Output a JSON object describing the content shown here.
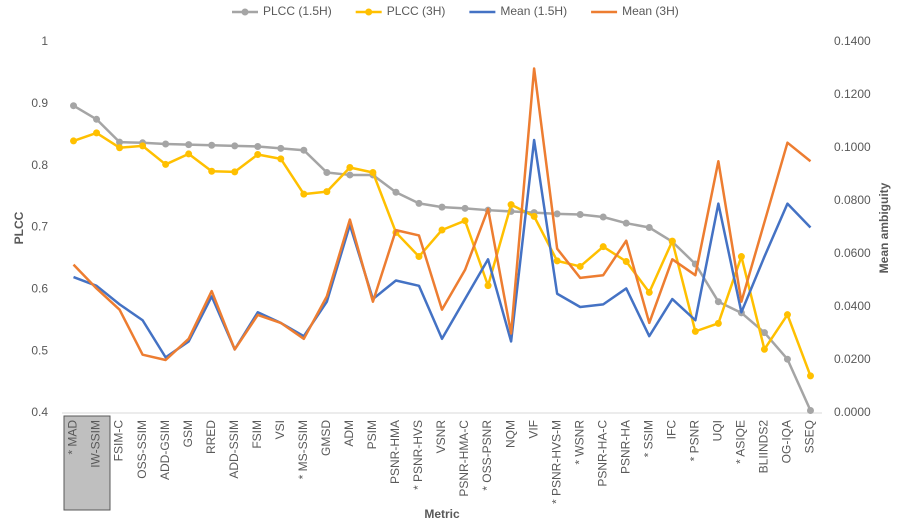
{
  "chart_data": {
    "type": "line",
    "xlabel": "Metric",
    "ylabel": "PLCC",
    "y2label": "Mean ambiguity",
    "categories": [
      "* MAD",
      "IW-SSIM",
      "FSIM-C",
      "OSS-SSIM",
      "ADD-GSIM",
      "GSM",
      "RRED",
      "ADD-SSIM",
      "FSIM",
      "VSI",
      "* MS-SSIM",
      "GMSD",
      "ADM",
      "PSIM",
      "PSNR-HMA",
      "* PSNR-HVS",
      "VSNR",
      "PSNR-HMA-C",
      "* OSS-PSNR",
      "NQM",
      "VIF",
      "* PSNR-HVS-M",
      "* WSNR",
      "PSNR-HA-C",
      "PSNR-HA",
      "* SSIM",
      "IFC",
      "* PSNR",
      "UQI",
      "* ASIQE",
      "BLIINDS2",
      "OG-IQA",
      "SSEQ"
    ],
    "series": [
      {
        "name": "PLCC (1.5H)",
        "color": "#a5a5a5",
        "markers": true,
        "values": [
          0.897,
          0.875,
          0.838,
          0.837,
          0.835,
          0.834,
          0.833,
          0.832,
          0.831,
          0.828,
          0.825,
          0.789,
          0.785,
          0.785,
          0.757,
          0.739,
          0.733,
          0.731,
          0.728,
          0.726,
          0.724,
          0.722,
          0.721,
          0.717,
          0.707,
          0.7,
          0.677,
          0.641,
          0.58,
          0.562,
          0.53,
          0.487,
          0.404
        ]
      },
      {
        "name": "PLCC (3H)",
        "color": "#ffc000",
        "markers": true,
        "values": [
          0.84,
          0.853,
          0.829,
          0.832,
          0.802,
          0.819,
          0.791,
          0.79,
          0.818,
          0.811,
          0.754,
          0.758,
          0.797,
          0.789,
          0.692,
          0.653,
          0.696,
          0.711,
          0.606,
          0.737,
          0.718,
          0.646,
          0.637,
          0.669,
          0.645,
          0.595,
          0.678,
          0.532,
          0.545,
          0.653,
          0.503,
          0.559,
          0.46
        ]
      },
      {
        "name": "Mean (1.5H)",
        "color": "#4472c4",
        "markers": false,
        "axis": "y2",
        "values": [
          0.0513,
          0.048,
          0.041,
          0.035,
          0.021,
          0.027,
          0.044,
          0.024,
          0.038,
          0.034,
          0.029,
          0.042,
          0.071,
          0.043,
          0.05,
          0.048,
          0.028,
          0.043,
          0.058,
          0.027,
          0.103,
          0.045,
          0.04,
          0.041,
          0.047,
          0.029,
          0.043,
          0.035,
          0.079,
          0.038,
          0.059,
          0.079,
          0.07
        ]
      },
      {
        "name": "Mean (3H)",
        "color": "#ed7d31",
        "markers": false,
        "axis": "y2",
        "values": [
          0.056,
          0.047,
          0.039,
          0.022,
          0.02,
          0.028,
          0.046,
          0.024,
          0.037,
          0.034,
          0.028,
          0.044,
          0.073,
          0.042,
          0.069,
          0.067,
          0.039,
          0.054,
          0.077,
          0.03,
          0.13,
          0.062,
          0.051,
          0.052,
          0.065,
          0.034,
          0.058,
          0.052,
          0.095,
          0.042,
          0.072,
          0.102,
          0.095
        ]
      }
    ],
    "ylim": [
      0.4,
      1
    ],
    "yticks": [
      0.4,
      0.5,
      0.6,
      0.7,
      0.8,
      0.9,
      1
    ],
    "y2lim": [
      0,
      0.14
    ],
    "y2ticks": [
      {
        "value": 0,
        "label": "0.0000"
      },
      {
        "value": 0.02,
        "label": "0.0200"
      },
      {
        "value": 0.04,
        "label": "0.0400"
      },
      {
        "value": 0.06,
        "label": "0.0600"
      },
      {
        "value": 0.08,
        "label": "0.0800"
      },
      {
        "value": 0.1,
        "label": "0.1000"
      },
      {
        "value": 0.12,
        "label": "0.1200"
      },
      {
        "value": 0.14,
        "label": "0.1400"
      }
    ],
    "legend": "top"
  }
}
